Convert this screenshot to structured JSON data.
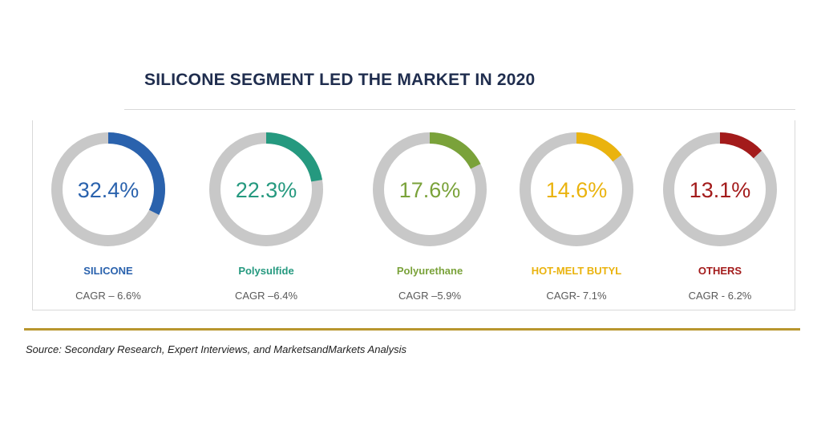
{
  "chart_data": {
    "type": "pie",
    "title": "SILICONE SEGMENT LED THE MARKET IN 2020",
    "value_suffix": "%",
    "items": [
      {
        "label": "SILICONE",
        "value": 32.4,
        "display": "32.4%",
        "cagr": "CAGR – 6.6%",
        "color": "#2a62ad"
      },
      {
        "label": "Polysulfide",
        "value": 22.3,
        "display": "22.3%",
        "cagr": "CAGR –6.4%",
        "color": "#25997f"
      },
      {
        "label": "Polyurethane",
        "value": 17.6,
        "display": "17.6%",
        "cagr": "CAGR –5.9%",
        "color": "#7aa23a"
      },
      {
        "label": "HOT-MELT BUTYL",
        "value": 14.6,
        "display": "14.6%",
        "cagr": "CAGR- 7.1%",
        "color": "#eab30e"
      },
      {
        "label": "OTHERS",
        "value": 13.1,
        "display": "13.1%",
        "cagr": "CAGR - 6.2%",
        "color": "#a31b1b"
      }
    ],
    "track_color": "#c8c8c8"
  },
  "source": "Source: Secondary Research, Expert Interviews, and MarketsandMarkets Analysis"
}
